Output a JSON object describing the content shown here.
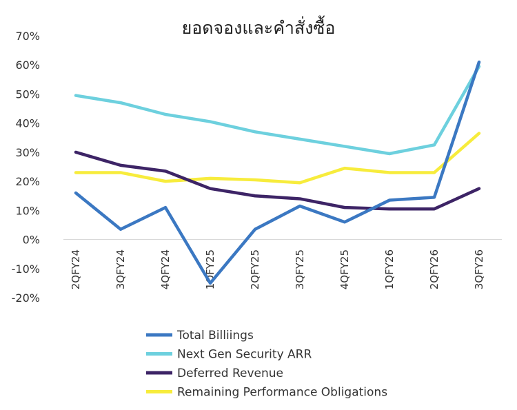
{
  "chart_data": {
    "type": "line",
    "title": "ยอดจองและคำสั่งซื้อ",
    "xlabel": "",
    "ylabel": "",
    "categories": [
      "2QFY24",
      "3QFY24",
      "4QFY24",
      "1QFY25",
      "2QFY25",
      "3QFY25",
      "4QFY25",
      "1QFY26",
      "2QFY26",
      "3QFY26"
    ],
    "ylim": [
      -20,
      70
    ],
    "yticks": [
      70,
      60,
      50,
      40,
      30,
      20,
      10,
      0,
      -10,
      -20
    ],
    "ytick_labels": [
      "70%",
      "60%",
      "50%",
      "40%",
      "30%",
      "20%",
      "10%",
      "0%",
      "-10%",
      "-20%"
    ],
    "grid": false,
    "legend_position": "bottom",
    "series": [
      {
        "name": "Total Billiings",
        "color": "#3b78c2",
        "values": [
          16,
          3.5,
          11,
          -15,
          3.5,
          11.5,
          6,
          13.5,
          14.5,
          61
        ]
      },
      {
        "name": "Next Gen Security ARR",
        "color": "#6dd0de",
        "values": [
          49.5,
          47,
          43,
          40.5,
          37,
          34.5,
          32,
          29.5,
          32.5,
          59.5
        ]
      },
      {
        "name": "Deferred Revenue",
        "color": "#3d2466",
        "values": [
          30,
          25.5,
          23.5,
          17.5,
          15,
          14,
          11,
          10.5,
          10.5,
          17.5
        ]
      },
      {
        "name": "Remaining Performance Obligations",
        "color": "#f7ec3c",
        "values": [
          23,
          23,
          20,
          21,
          20.5,
          19.5,
          24.5,
          23,
          23,
          36.5
        ]
      }
    ]
  }
}
